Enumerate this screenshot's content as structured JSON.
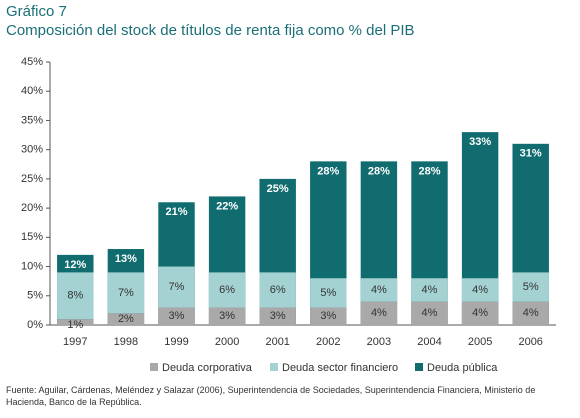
{
  "chart_data": {
    "type": "bar",
    "title": "Gráfico 7",
    "subtitle": "Composición del stock de títulos de renta fija como % del PIB",
    "note": "Fuente: Aguilar, Cárdenas, Meléndez y Salazar (2006), Superintendencia de Sociedades, Superintendencia Financiera, Ministerio de Hacienda, Banco de la República.",
    "categories": [
      "1997",
      "1998",
      "1999",
      "2000",
      "2001",
      "2002",
      "2003",
      "2004",
      "2005",
      "2006"
    ],
    "series": [
      {
        "name": "Deuda corporativa",
        "color": "#a9a9a9",
        "values": [
          1,
          2,
          3,
          3,
          3,
          3,
          4,
          4,
          4,
          4
        ],
        "value_labels": [
          "1%",
          "2%",
          "3%",
          "3%",
          "3%",
          "3%",
          "4%",
          "4%",
          "4%",
          "4%"
        ]
      },
      {
        "name": "Deuda sector financiero",
        "color": "#a4d2d3",
        "values": [
          8,
          7,
          7,
          6,
          6,
          5,
          4,
          4,
          4,
          5
        ],
        "value_labels": [
          "8%",
          "7%",
          "7%",
          "6%",
          "6%",
          "5%",
          "4%",
          "4%",
          "4%",
          "5%"
        ]
      },
      {
        "name": "Deuda pública",
        "color": "#116c70",
        "values": [
          12,
          13,
          21,
          22,
          25,
          28,
          28,
          28,
          33,
          31
        ],
        "value_labels": [
          "12%",
          "13%",
          "21%",
          "22%",
          "25%",
          "28%",
          "28%",
          "28%",
          "33%",
          "31%"
        ]
      }
    ],
    "ylim": [
      0,
      45
    ],
    "yticks": [
      {
        "value": 0,
        "label": "0%"
      },
      {
        "value": 5,
        "label": "5%"
      },
      {
        "value": 10,
        "label": "10%"
      },
      {
        "value": 15,
        "label": "15%"
      },
      {
        "value": 20,
        "label": "20%"
      },
      {
        "value": 25,
        "label": "25%"
      },
      {
        "value": 30,
        "label": "30%"
      },
      {
        "value": 35,
        "label": "35%"
      },
      {
        "value": 40,
        "label": "40%"
      },
      {
        "value": 45,
        "label": "45%"
      }
    ],
    "grid": false,
    "legend": "bottom"
  }
}
